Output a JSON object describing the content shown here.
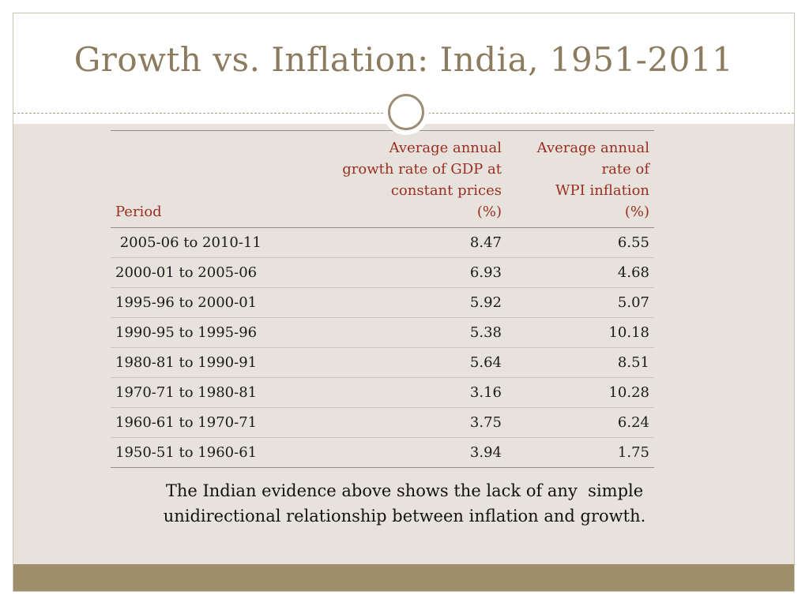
{
  "slide": {
    "title": "Growth vs. Inflation: India, 1951-2011",
    "caption_line1": "The Indian evidence above shows the lack of any  simple",
    "caption_line2": "unidirectional relationship between inflation and growth.",
    "colors": {
      "title": "#8c7b5e",
      "header_text": "#9b2d22",
      "content_background": "#e7e3dc",
      "bottom_band": "#9f8e6a"
    }
  },
  "table": {
    "headers": {
      "period": "Period",
      "gdp_lines": [
        "Average annual",
        "growth rate of GDP at",
        "constant prices",
        "(%)"
      ],
      "wpi_lines": [
        "Average annual",
        "rate of",
        "WPI inflation",
        "(%)"
      ]
    },
    "rows": [
      {
        "period": " 2005-06 to 2010-11",
        "gdp": "8.47",
        "wpi": "6.55"
      },
      {
        "period": "2000-01 to 2005-06",
        "gdp": "6.93",
        "wpi": "4.68"
      },
      {
        "period": "1995-96 to 2000-01",
        "gdp": "5.92",
        "wpi": "5.07"
      },
      {
        "period": "1990-95 to 1995-96",
        "gdp": "5.38",
        "wpi": "10.18"
      },
      {
        "period": "1980-81 to 1990-91",
        "gdp": "5.64",
        "wpi": "8.51"
      },
      {
        "period": "1970-71 to 1980-81",
        "gdp": "3.16",
        "wpi": "10.28"
      },
      {
        "period": "1960-61 to 1970-71",
        "gdp": "3.75",
        "wpi": "6.24"
      },
      {
        "period": "1950-51 to 1960-61",
        "gdp": "3.94",
        "wpi": "1.75"
      }
    ]
  }
}
